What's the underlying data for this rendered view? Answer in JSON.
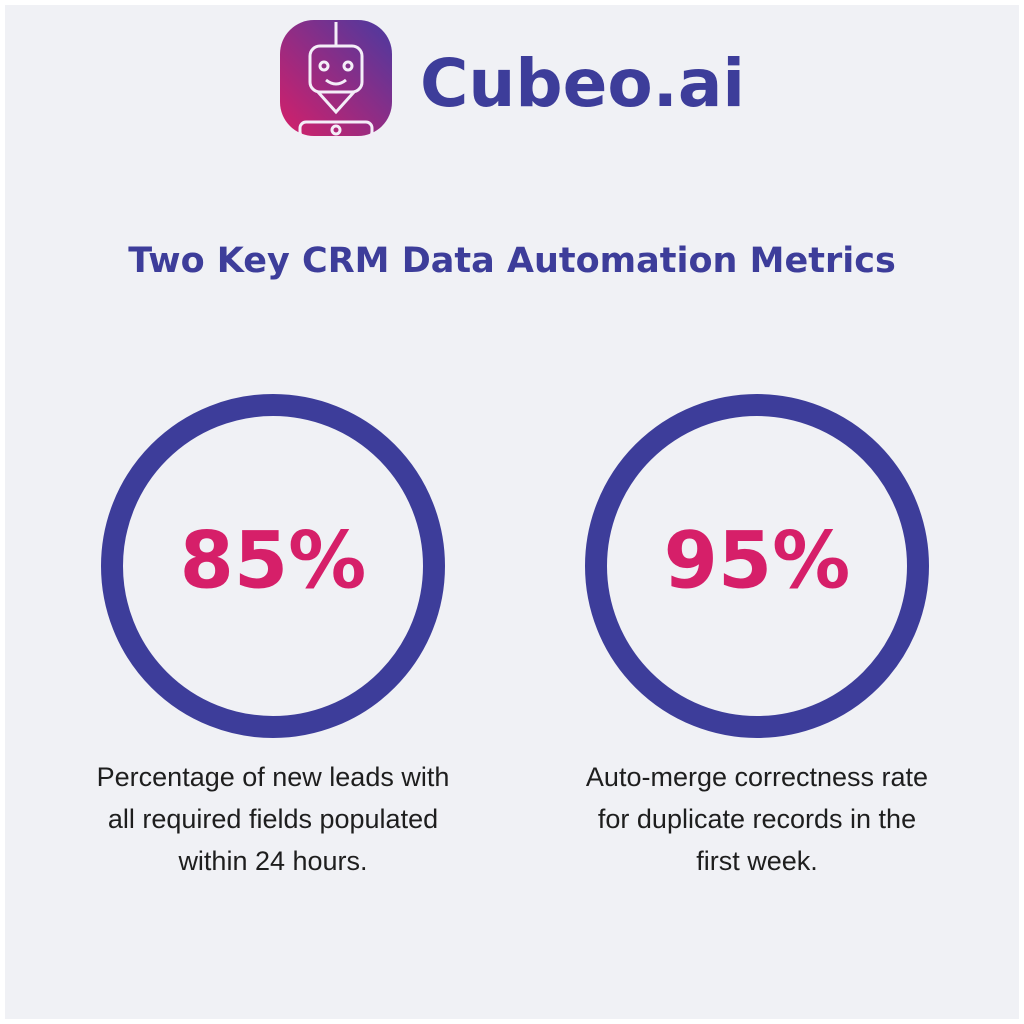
{
  "header": {
    "brand": "Cubeo.ai"
  },
  "title": "Two Key CRM Data Automation Metrics",
  "metrics": [
    {
      "value": "85%",
      "description": [
        "Percentage of new leads with",
        "all required fields populated",
        "within 24 hours."
      ]
    },
    {
      "value": "95%",
      "description": [
        "Auto-merge correctness rate",
        "for duplicate records in the",
        "first week."
      ]
    }
  ]
}
